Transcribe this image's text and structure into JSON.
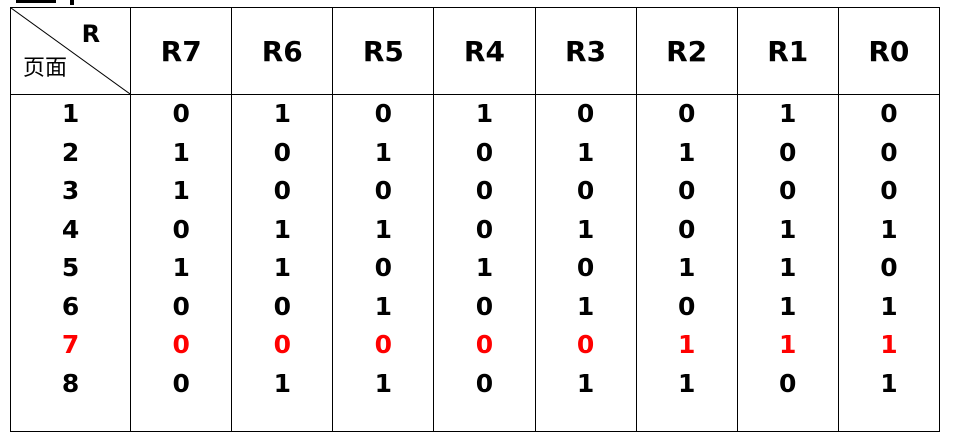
{
  "table": {
    "corner": {
      "top_label": "R",
      "bottom_label": "页面"
    },
    "columns": [
      "R7",
      "R6",
      "R5",
      "R4",
      "R3",
      "R2",
      "R1",
      "R0"
    ],
    "rows": [
      {
        "page": "1",
        "bits": [
          "0",
          "1",
          "0",
          "1",
          "0",
          "0",
          "1",
          "0"
        ],
        "highlight": false
      },
      {
        "page": "2",
        "bits": [
          "1",
          "0",
          "1",
          "0",
          "1",
          "1",
          "0",
          "0"
        ],
        "highlight": false
      },
      {
        "page": "3",
        "bits": [
          "1",
          "0",
          "0",
          "0",
          "0",
          "0",
          "0",
          "0"
        ],
        "highlight": false
      },
      {
        "page": "4",
        "bits": [
          "0",
          "1",
          "1",
          "0",
          "1",
          "0",
          "1",
          "1"
        ],
        "highlight": false
      },
      {
        "page": "5",
        "bits": [
          "1",
          "1",
          "0",
          "1",
          "0",
          "1",
          "1",
          "0"
        ],
        "highlight": false
      },
      {
        "page": "6",
        "bits": [
          "0",
          "0",
          "1",
          "0",
          "1",
          "0",
          "1",
          "1"
        ],
        "highlight": false
      },
      {
        "page": "7",
        "bits": [
          "0",
          "0",
          "0",
          "0",
          "0",
          "1",
          "1",
          "1"
        ],
        "highlight": true
      },
      {
        "page": "8",
        "bits": [
          "0",
          "1",
          "1",
          "0",
          "1",
          "1",
          "0",
          "1"
        ],
        "highlight": false
      }
    ],
    "highlight_color": "#ff0000"
  }
}
